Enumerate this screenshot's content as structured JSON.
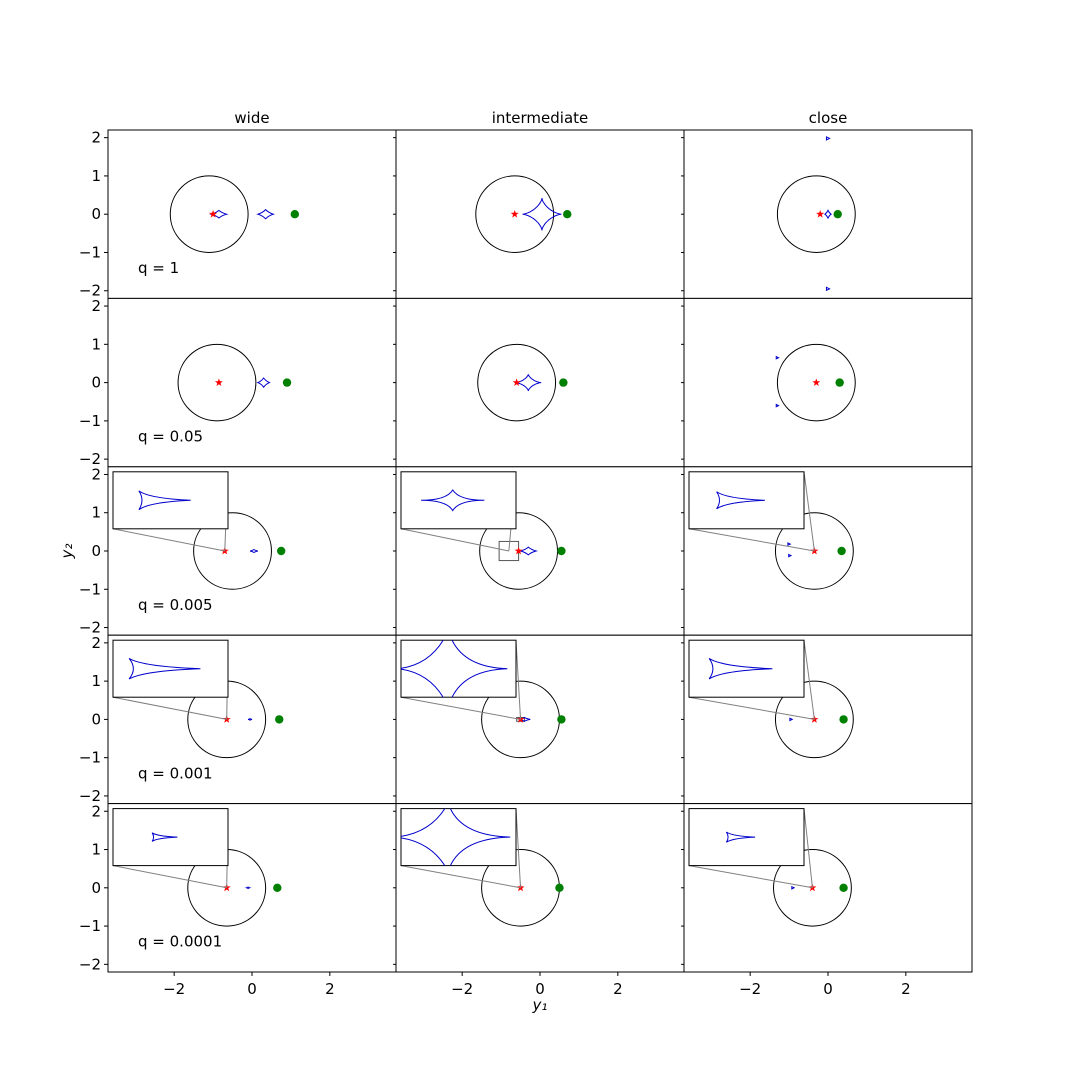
{
  "chart_data": {
    "type": "scatter",
    "layout": "grid of 5 rows x 3 columns, shared axes",
    "column_titles": [
      "wide",
      "intermediate",
      "close"
    ],
    "row_labels": [
      "q = 1",
      "q = 0.05",
      "q = 0.005",
      "q = 0.001",
      "q = 0.0001"
    ],
    "xlabel": "y₁",
    "ylabel": "y₂",
    "xlim": [
      -3.7,
      3.7
    ],
    "ylim": [
      -2.2,
      2.2
    ],
    "xticks": [
      -2,
      0,
      2
    ],
    "yticks": [
      2,
      1,
      0,
      -1,
      -2
    ],
    "tick_labels_x": [
      "−2",
      "0",
      "2"
    ],
    "tick_labels_y": [
      "2",
      "1",
      "0",
      "−1",
      "−2"
    ],
    "colors": {
      "caustic": "#0000cc",
      "source_star": "#ff0000",
      "planet_dot": "#008000",
      "einstein_ring": "#000000",
      "inset_link": "#808080"
    },
    "panels": [
      [
        {
          "ring": [
            -1.1,
            0,
            1.0
          ],
          "star": [
            -1.0,
            0
          ],
          "dot": [
            1.1,
            0
          ],
          "caustics": [
            {
              "kind": "caustic",
              "x": 0.35,
              "y": 0,
              "hw": 0.2,
              "hh": 0.12
            },
            {
              "kind": "diamond",
              "x": -0.85,
              "y": 0,
              "hw": 0.2,
              "hh": 0.1
            }
          ]
        },
        {
          "ring": [
            -0.65,
            0,
            1.0
          ],
          "star": [
            -0.65,
            0
          ],
          "dot": [
            0.7,
            0
          ],
          "caustics": [
            {
              "kind": "astroid",
              "x": 0.05,
              "y": 0,
              "hw": 0.5,
              "hh": 0.42
            }
          ]
        },
        {
          "ring": [
            -0.3,
            0,
            1.0
          ],
          "star": [
            -0.2,
            0
          ],
          "dot": [
            0.25,
            0
          ],
          "caustics": [
            {
              "kind": "diamond",
              "x": 0.0,
              "y": 0,
              "hw": 0.08,
              "hh": 0.1
            },
            {
              "kind": "tri",
              "x": 0.0,
              "y": 1.98,
              "hw": 0.04,
              "hh": 0.04
            },
            {
              "kind": "tri",
              "x": 0.0,
              "y": -1.95,
              "hw": 0.04,
              "hh": 0.04
            }
          ]
        }
      ],
      [
        {
          "ring": [
            -0.9,
            0,
            1.0
          ],
          "star": [
            -0.85,
            0
          ],
          "dot": [
            0.9,
            0
          ],
          "caustics": [
            {
              "kind": "diamond",
              "x": 0.3,
              "y": 0,
              "hw": 0.15,
              "hh": 0.12
            },
            {
              "kind": "tiny",
              "x": -0.85,
              "y": 0,
              "hw": 0.05,
              "hh": 0.02
            }
          ]
        },
        {
          "ring": [
            -0.6,
            0,
            1.0
          ],
          "star": [
            -0.6,
            0
          ],
          "dot": [
            0.6,
            0
          ],
          "caustics": [
            {
              "kind": "astroid",
              "x": -0.3,
              "y": 0,
              "hw": 0.33,
              "hh": 0.22
            }
          ]
        },
        {
          "ring": [
            -0.3,
            0,
            1.0
          ],
          "star": [
            -0.3,
            0
          ],
          "dot": [
            0.3,
            0
          ],
          "caustics": [
            {
              "kind": "tri",
              "x": -1.3,
              "y": 0.65,
              "hw": 0.03,
              "hh": 0.03
            },
            {
              "kind": "tri",
              "x": -1.3,
              "y": -0.6,
              "hw": 0.03,
              "hh": 0.03
            }
          ]
        }
      ],
      [
        {
          "ring": [
            -0.5,
            0,
            1.0
          ],
          "star": [
            -0.7,
            0
          ],
          "dot": [
            0.75,
            0
          ],
          "caustics": [
            {
              "kind": "tiny",
              "x": 0.05,
              "y": 0,
              "hw": 0.1,
              "hh": 0.04
            }
          ],
          "inset": {
            "shape": "arrow",
            "w": 0.45,
            "h": 0.11
          }
        },
        {
          "ring": [
            -0.55,
            0,
            1.0
          ],
          "star": [
            -0.55,
            0
          ],
          "dot": [
            0.55,
            0
          ],
          "caustics": [
            {
              "kind": "diamond",
              "x": -0.3,
              "y": 0,
              "hw": 0.2,
              "hh": 0.1
            }
          ],
          "zoom_box": [
            -1.05,
            -0.25,
            0.5,
            0.5
          ],
          "inset": {
            "shape": "lens",
            "w": 0.55,
            "h": 0.12
          }
        },
        {
          "ring": [
            -0.35,
            0,
            1.0
          ],
          "star": [
            -0.35,
            0
          ],
          "dot": [
            0.35,
            0
          ],
          "caustics": [
            {
              "kind": "tri",
              "x": -1.0,
              "y": 0.18,
              "hw": 0.03,
              "hh": 0.03
            },
            {
              "kind": "tri",
              "x": -0.98,
              "y": -0.12,
              "hw": 0.03,
              "hh": 0.03
            }
          ],
          "inset": {
            "shape": "arrow",
            "w": 0.42,
            "h": 0.1
          }
        }
      ],
      [
        {
          "ring": [
            -0.65,
            0,
            1.0
          ],
          "star": [
            -0.65,
            0
          ],
          "dot": [
            0.7,
            0
          ],
          "caustics": [
            {
              "kind": "tiny",
              "x": -0.05,
              "y": 0,
              "hw": 0.05,
              "hh": 0.02
            }
          ],
          "inset": {
            "shape": "arrow",
            "w": 0.62,
            "h": 0.12
          }
        },
        {
          "ring": [
            -0.5,
            0,
            1.0
          ],
          "star": [
            -0.5,
            0
          ],
          "dot": [
            0.55,
            0
          ],
          "caustics": [
            {
              "kind": "tiny",
              "x": -0.4,
              "y": 0,
              "hw": 0.15,
              "hh": 0.05
            }
          ],
          "zoom_box": [
            -0.6,
            -0.05,
            0.2,
            0.1
          ],
          "inset": {
            "shape": "lensbig",
            "w": 0.95,
            "h": 0.45
          }
        },
        {
          "ring": [
            -0.35,
            0,
            1.0
          ],
          "star": [
            -0.35,
            0
          ],
          "dot": [
            0.4,
            0
          ],
          "caustics": [
            {
              "kind": "tri",
              "x": -0.95,
              "y": 0.0,
              "hw": 0.03,
              "hh": 0.03
            }
          ],
          "inset": {
            "shape": "arrow",
            "w": 0.55,
            "h": 0.12
          }
        }
      ],
      [
        {
          "ring": [
            -0.65,
            0,
            1.0
          ],
          "star": [
            -0.65,
            0
          ],
          "dot": [
            0.65,
            0
          ],
          "caustics": [
            {
              "kind": "tiny",
              "x": -0.1,
              "y": 0,
              "hw": 0.04,
              "hh": 0.02
            }
          ],
          "inset": {
            "shape": "arrow",
            "w": 0.22,
            "h": 0.05
          }
        },
        {
          "ring": [
            -0.5,
            0,
            1.0
          ],
          "star": [
            -0.5,
            0
          ],
          "dot": [
            0.5,
            0
          ],
          "caustics": [],
          "inset": {
            "shape": "lensbig",
            "w": 1.0,
            "h": 0.4
          }
        },
        {
          "ring": [
            -0.4,
            0,
            1.0
          ],
          "star": [
            -0.4,
            0
          ],
          "dot": [
            0.4,
            0
          ],
          "caustics": [
            {
              "kind": "tri",
              "x": -0.9,
              "y": 0.0,
              "hw": 0.03,
              "hh": 0.03
            }
          ],
          "inset": {
            "shape": "arrow",
            "w": 0.25,
            "h": 0.06
          }
        }
      ]
    ]
  }
}
